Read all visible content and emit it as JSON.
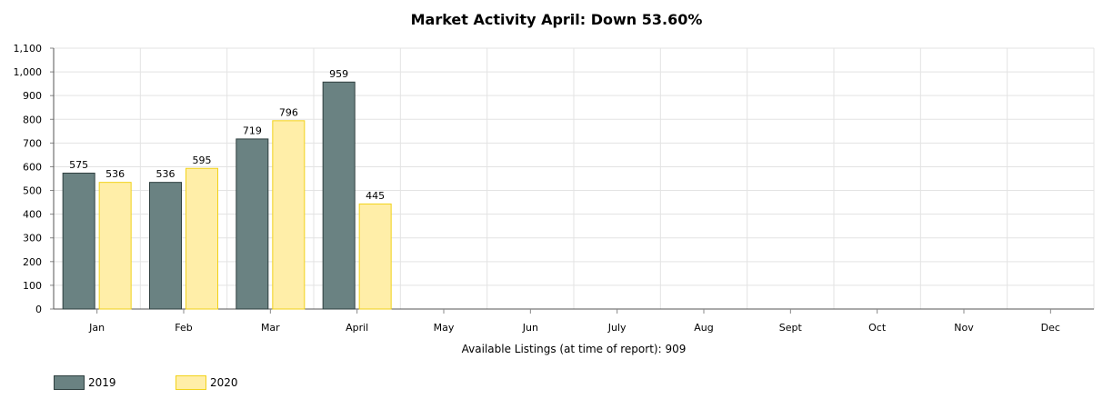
{
  "chart_data": {
    "type": "bar",
    "title": "Market Activity April: Down 53.60%",
    "xlabel": "Available Listings (at time of report): 909",
    "ylabel": "",
    "categories": [
      "Jan",
      "Feb",
      "Mar",
      "April",
      "May",
      "Jun",
      "July",
      "Aug",
      "Sept",
      "Oct",
      "Nov",
      "Dec"
    ],
    "ylim": [
      0,
      1100
    ],
    "yticks": [
      0,
      100,
      200,
      300,
      400,
      500,
      600,
      700,
      800,
      900,
      1000,
      1100
    ],
    "ytick_labels": [
      "0",
      "100",
      "200",
      "300",
      "400",
      "500",
      "600",
      "700",
      "800",
      "900",
      "1,000",
      "1,100"
    ],
    "grid": true,
    "legend_position": "bottom-left",
    "series": [
      {
        "name": "2019",
        "values": [
          575,
          536,
          719,
          959,
          null,
          null,
          null,
          null,
          null,
          null,
          null,
          null
        ],
        "fill": "#6a8282",
        "stroke": "#2f3f3f"
      },
      {
        "name": "2020",
        "values": [
          536,
          595,
          796,
          445,
          null,
          null,
          null,
          null,
          null,
          null,
          null,
          null
        ],
        "fill": "#ffeea8",
        "stroke": "#f2d21a"
      }
    ]
  }
}
